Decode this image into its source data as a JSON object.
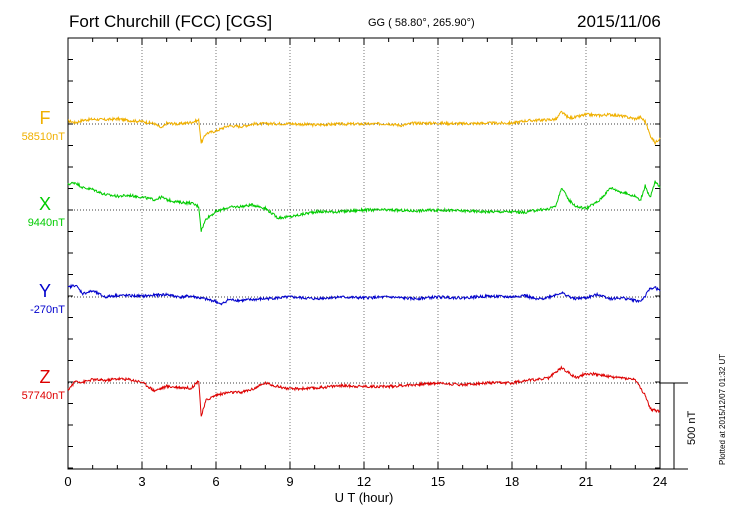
{
  "header": {
    "station": "Fort Churchill (FCC)  [CGS]",
    "coords": "GG ( 58.80°, 265.90°)",
    "date": "2015/11/06"
  },
  "plotted_note": "Plotted at 2015/12/07 01:32 UT",
  "scale_label": "500 nT",
  "chart_data": {
    "type": "line",
    "title": "Fort Churchill (FCC)  [CGS]",
    "xlabel": "U T (hour)",
    "xlim": [
      0,
      24
    ],
    "xticks": [
      "0",
      "3",
      "6",
      "9",
      "12",
      "15",
      "18",
      "21",
      "24"
    ],
    "xtick_values": [
      0,
      3,
      6,
      9,
      12,
      15,
      18,
      21,
      24
    ],
    "ylabel_unit": "nT",
    "scale_bar_nT": 500,
    "grid": true,
    "series": [
      {
        "name": "F",
        "baseline_label": "58510nT",
        "baseline_nT": 58510,
        "color": "#f0b000",
        "x": [
          0,
          0.3,
          0.6,
          1,
          1.5,
          2,
          2.5,
          3,
          3.5,
          3.8,
          4,
          4.5,
          5,
          5.3,
          5.4,
          5.6,
          6,
          6.5,
          7,
          7.5,
          8,
          9,
          10,
          11,
          12,
          13,
          13.5,
          14,
          15,
          16,
          17,
          18,
          18.5,
          19,
          19.5,
          19.8,
          20,
          20.3,
          20.6,
          21,
          21.5,
          22,
          22.5,
          23,
          23.2,
          23.4,
          23.6,
          23.8,
          24
        ],
        "values": [
          18,
          8,
          22,
          28,
          25,
          30,
          20,
          15,
          2,
          -25,
          5,
          0,
          10,
          22,
          -110,
          -55,
          -40,
          -10,
          -15,
          0,
          2,
          2,
          -5,
          0,
          0,
          2,
          -8,
          5,
          5,
          2,
          5,
          5,
          18,
          22,
          25,
          28,
          70,
          35,
          40,
          55,
          50,
          55,
          45,
          30,
          40,
          15,
          -65,
          -110,
          -80
        ]
      },
      {
        "name": "X",
        "baseline_label": "9440nT",
        "baseline_nT": 9440,
        "color": "#00cc00",
        "x": [
          0,
          0.3,
          0.6,
          1,
          1.5,
          2,
          2.5,
          3,
          3.5,
          3.8,
          4,
          4.5,
          5,
          5.3,
          5.4,
          5.6,
          6,
          6.5,
          7,
          7.5,
          8,
          8.5,
          9,
          10,
          11,
          12,
          13,
          14,
          15,
          16,
          17,
          18,
          18.5,
          19,
          19.5,
          19.8,
          20,
          20.3,
          20.6,
          21,
          21.5,
          22,
          22.5,
          23,
          23.2,
          23.4,
          23.6,
          23.8,
          24
        ],
        "values": [
          150,
          160,
          130,
          120,
          90,
          80,
          85,
          75,
          60,
          75,
          60,
          45,
          40,
          20,
          -120,
          -50,
          -10,
          15,
          20,
          30,
          10,
          -45,
          -40,
          -10,
          -10,
          0,
          0,
          -5,
          0,
          -5,
          -10,
          -10,
          -15,
          0,
          5,
          30,
          130,
          60,
          20,
          10,
          50,
          130,
          100,
          80,
          55,
          140,
          70,
          165,
          130
        ]
      },
      {
        "name": "Y",
        "baseline_label": "-270nT",
        "baseline_nT": -270,
        "color": "#0000cc",
        "x": [
          0,
          0.3,
          0.6,
          1,
          1.5,
          2,
          3,
          4,
          4.5,
          5,
          5.5,
          6,
          6.2,
          6.5,
          7,
          8,
          9,
          10,
          11,
          12,
          13,
          14,
          15,
          16,
          17,
          18,
          18.5,
          19,
          19.5,
          20,
          20.5,
          21,
          21.5,
          22,
          22.5,
          23,
          23.2,
          23.4,
          23.6,
          23.8,
          24
        ],
        "values": [
          55,
          70,
          20,
          35,
          0,
          10,
          5,
          15,
          0,
          5,
          -10,
          -25,
          -45,
          -15,
          -20,
          -10,
          0,
          -10,
          0,
          -5,
          0,
          -10,
          0,
          -5,
          5,
          0,
          10,
          -15,
          0,
          25,
          -10,
          -5,
          15,
          -10,
          -5,
          -20,
          -25,
          5,
          50,
          55,
          35
        ]
      },
      {
        "name": "Z",
        "baseline_label": "57740nT",
        "baseline_nT": 57740,
        "color": "#dd0000",
        "x": [
          0,
          0.3,
          0.6,
          1,
          1.5,
          2,
          2.5,
          3,
          3.5,
          4,
          4.5,
          5,
          5.3,
          5.4,
          5.6,
          6,
          6.5,
          7,
          7.5,
          8,
          8.5,
          9,
          10,
          11,
          12,
          13,
          14,
          15,
          16,
          17,
          18,
          18.5,
          19,
          19.5,
          20,
          20.3,
          20.6,
          21,
          21.5,
          22,
          22.5,
          23,
          23.2,
          23.4,
          23.6,
          23.8,
          24
        ],
        "values": [
          -40,
          10,
          5,
          20,
          15,
          25,
          20,
          5,
          -45,
          -20,
          -25,
          -30,
          15,
          -195,
          -100,
          -70,
          -55,
          -55,
          -35,
          0,
          -20,
          -35,
          -30,
          -15,
          -20,
          -20,
          -10,
          0,
          -10,
          0,
          0,
          15,
          20,
          30,
          90,
          60,
          30,
          55,
          50,
          35,
          30,
          20,
          -30,
          -70,
          -150,
          -160,
          -165
        ]
      }
    ]
  }
}
